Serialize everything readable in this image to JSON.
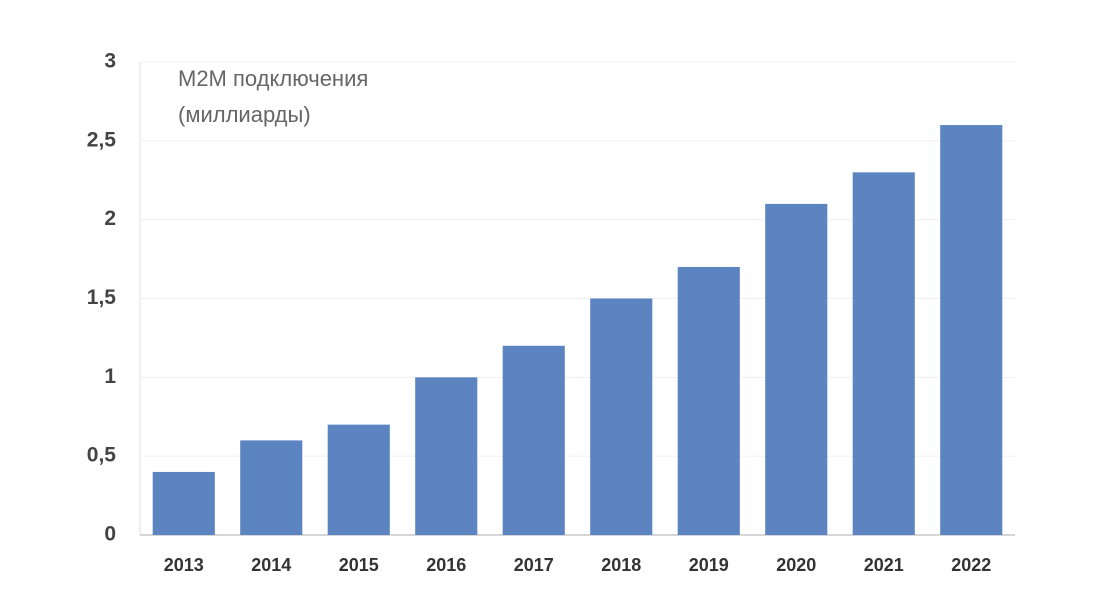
{
  "chart_data": {
    "type": "bar",
    "title": [
      "M2M подключения",
      "(миллиарды)"
    ],
    "categories": [
      "2013",
      "2014",
      "2015",
      "2016",
      "2017",
      "2018",
      "2019",
      "2020",
      "2021",
      "2022"
    ],
    "values": [
      0.4,
      0.6,
      0.7,
      1.0,
      1.2,
      1.5,
      1.7,
      2.1,
      2.3,
      2.6
    ],
    "color": "#5b84c0",
    "ylim": [
      0,
      3
    ],
    "yticks": [
      0,
      {
        "value": 0.5,
        "label": "0,5"
      },
      1,
      {
        "value": 1.5,
        "label": "1,5"
      },
      2,
      {
        "value": 2.5,
        "label": "2,5"
      },
      3
    ],
    "grid": true
  }
}
